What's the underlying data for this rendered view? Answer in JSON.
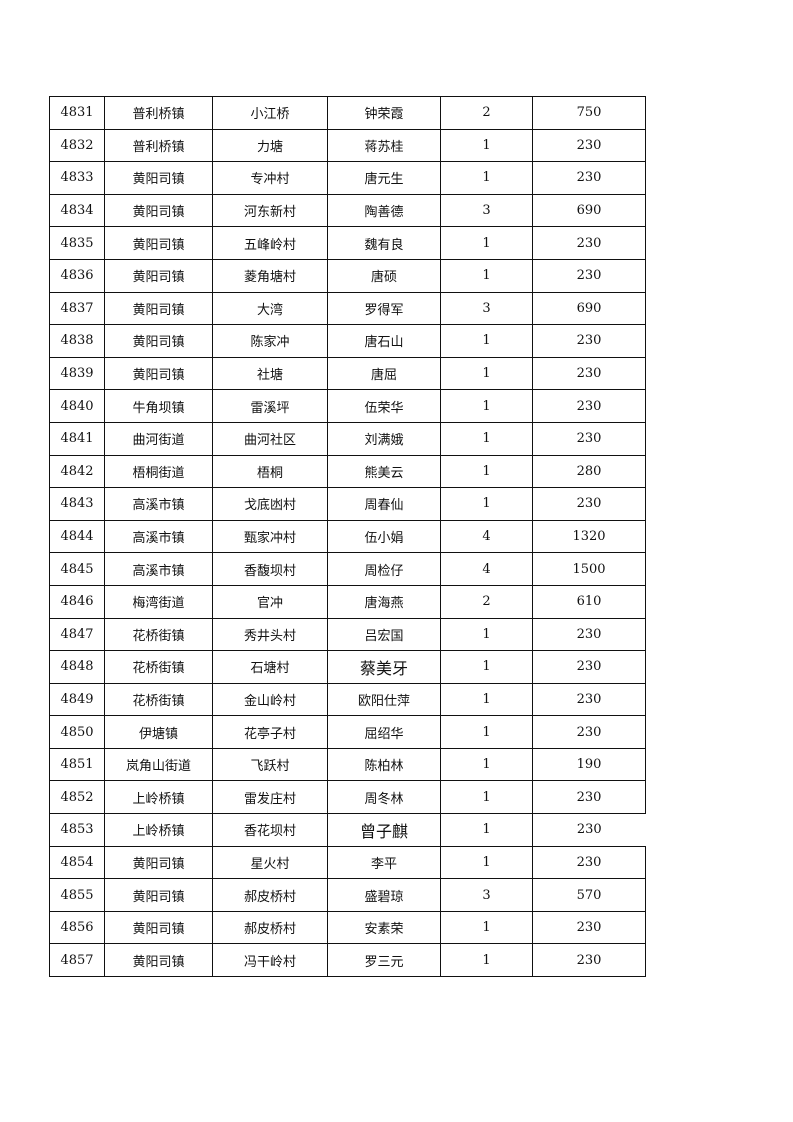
{
  "table": {
    "rows": [
      [
        "4831",
        "普利桥镇",
        "小江桥",
        "钟荣霞",
        "2",
        "750"
      ],
      [
        "4832",
        "普利桥镇",
        "力塘",
        "蒋苏桂",
        "1",
        "230"
      ],
      [
        "4833",
        "黄阳司镇",
        "专冲村",
        "唐元生",
        "1",
        "230"
      ],
      [
        "4834",
        "黄阳司镇",
        "河东新村",
        "陶善德",
        "3",
        "690"
      ],
      [
        "4835",
        "黄阳司镇",
        "五峰岭村",
        "魏有良",
        "1",
        "230"
      ],
      [
        "4836",
        "黄阳司镇",
        "菱角塘村",
        "唐硕",
        "1",
        "230"
      ],
      [
        "4837",
        "黄阳司镇",
        "大湾",
        "罗得军",
        "3",
        "690"
      ],
      [
        "4838",
        "黄阳司镇",
        "陈家冲",
        "唐石山",
        "1",
        "230"
      ],
      [
        "4839",
        "黄阳司镇",
        "社塘",
        "唐屈",
        "1",
        "230"
      ],
      [
        "4840",
        "牛角坝镇",
        "雷溪坪",
        "伍荣华",
        "1",
        "230"
      ],
      [
        "4841",
        "曲河街道",
        "曲河社区",
        "刘满娥",
        "1",
        "230"
      ],
      [
        "4842",
        "梧桐街道",
        "梧桐",
        "熊美云",
        "1",
        "280"
      ],
      [
        "4843",
        "高溪市镇",
        "戈底凼村",
        "周春仙",
        "1",
        "230"
      ],
      [
        "4844",
        "高溪市镇",
        "甄家冲村",
        "伍小娟",
        "4",
        "1320"
      ],
      [
        "4845",
        "高溪市镇",
        "香馥坝村",
        "周检仔",
        "4",
        "1500"
      ],
      [
        "4846",
        "梅湾街道",
        "官冲",
        "唐海燕",
        "2",
        "610"
      ],
      [
        "4847",
        "花桥街镇",
        "秀井头村",
        "吕宏国",
        "1",
        "230"
      ],
      [
        "4848",
        "花桥街镇",
        "石塘村",
        "蔡美牙",
        "1",
        "230"
      ],
      [
        "4849",
        "花桥街镇",
        "金山岭村",
        "欧阳仕萍",
        "1",
        "230"
      ],
      [
        "4850",
        "伊塘镇",
        "花亭子村",
        "屈绍华",
        "1",
        "230"
      ],
      [
        "4851",
        "岚角山街道",
        "飞跃村",
        "陈柏林",
        "1",
        "190"
      ],
      [
        "4852",
        "上岭桥镇",
        "雷发庄村",
        "周冬林",
        "1",
        "230"
      ],
      [
        "4853",
        "上岭桥镇",
        "香花坝村",
        "曾子麒",
        "1",
        "230"
      ],
      [
        "4854",
        "黄阳司镇",
        "星火村",
        "李平",
        "1",
        "230"
      ],
      [
        "4855",
        "黄阳司镇",
        "郝皮桥村",
        "盛碧琼",
        "3",
        "570"
      ],
      [
        "4856",
        "黄阳司镇",
        "郝皮桥村",
        "安素荣",
        "1",
        "230"
      ],
      [
        "4857",
        "黄阳司镇",
        "冯干岭村",
        "罗三元",
        "1",
        "230"
      ]
    ]
  }
}
